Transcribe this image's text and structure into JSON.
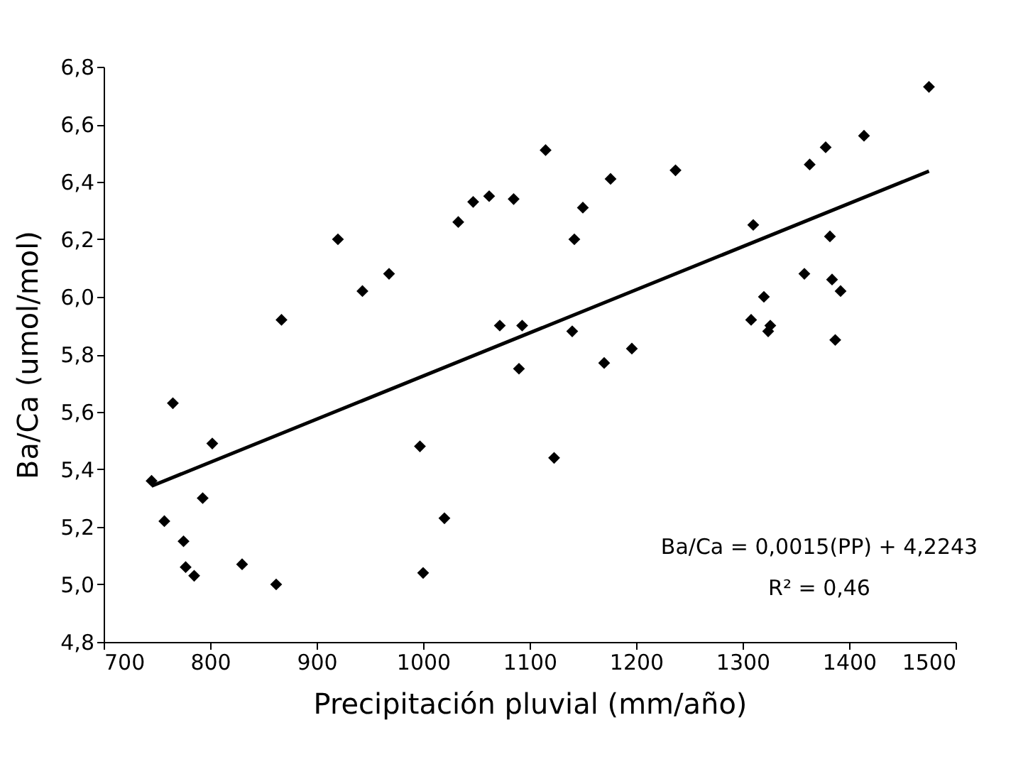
{
  "chart_data": {
    "type": "scatter",
    "xlabel": "Precipitación pluvial (mm/año)",
    "ylabel": "Ba/Ca (umol/mol)",
    "xlim": [
      700,
      1500
    ],
    "xticks": [
      700,
      800,
      900,
      1000,
      1100,
      1200,
      1300,
      1400,
      1500
    ],
    "ylim": [
      4.8,
      6.8
    ],
    "yticks": [
      {
        "value": 4.8,
        "label": "4,8"
      },
      {
        "value": 5.0,
        "label": "5,0"
      },
      {
        "value": 5.2,
        "label": "5,2"
      },
      {
        "value": 5.4,
        "label": "5,4"
      },
      {
        "value": 5.6,
        "label": "5,6"
      },
      {
        "value": 5.8,
        "label": "5,8"
      },
      {
        "value": 6.0,
        "label": "6,0"
      },
      {
        "value": 6.2,
        "label": "6,2"
      },
      {
        "value": 6.4,
        "label": "6,4"
      },
      {
        "value": 6.6,
        "label": "6,6"
      },
      {
        "value": 6.8,
        "label": "6,8"
      }
    ],
    "grid": false,
    "marker": "diamond",
    "series": [
      {
        "color": "#000000",
        "x": [
          745,
          757,
          765,
          775,
          777,
          785,
          793,
          802,
          830,
          862,
          867,
          920,
          943,
          968,
          997,
          1000,
          1020,
          1033,
          1047,
          1062,
          1072,
          1085,
          1090,
          1093,
          1115,
          1123,
          1140,
          1142,
          1150,
          1170,
          1176,
          1196,
          1237,
          1308,
          1310,
          1320,
          1324,
          1326,
          1358,
          1363,
          1378,
          1382,
          1384,
          1387,
          1392,
          1414,
          1475
        ],
        "values": [
          5.36,
          5.22,
          5.63,
          5.15,
          5.06,
          5.03,
          5.3,
          5.49,
          5.07,
          5.0,
          5.92,
          6.2,
          6.02,
          6.08,
          5.48,
          5.04,
          5.23,
          6.26,
          6.33,
          6.35,
          5.9,
          6.34,
          5.75,
          5.9,
          6.51,
          5.44,
          5.88,
          6.2,
          6.31,
          5.77,
          6.41,
          5.82,
          6.44,
          5.92,
          6.25,
          6.0,
          5.88,
          5.9,
          6.08,
          6.46,
          6.52,
          6.21,
          6.06,
          5.85,
          6.02,
          6.56,
          6.73
        ]
      },
      {
        "type": "line",
        "marker": "none",
        "line_style": "solid",
        "color": "#000000",
        "x": [
          745,
          1475
        ],
        "values": [
          5.342,
          6.437
        ]
      }
    ],
    "annotations": [
      "Ba/Ca = 0,0015(PP) + 4,2243",
      "R² = 0,46"
    ]
  }
}
